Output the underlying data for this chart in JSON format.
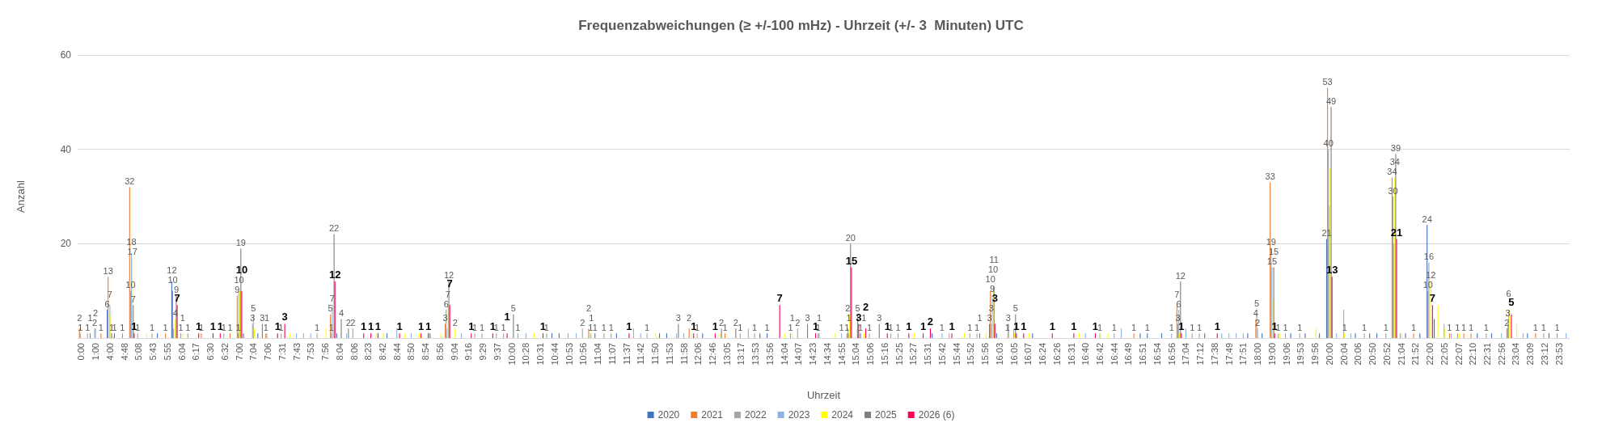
{
  "chart_data": {
    "type": "bar",
    "title": "Frequenzabweichungen (≥ +/-100 mHz) - Uhrzeit (+/- 3  Minuten) UTC",
    "xlabel": "Uhrzeit",
    "ylabel": "Anzahl",
    "categories": [
      "0:00",
      null,
      "1:00",
      null,
      "4:00",
      null,
      "4:48",
      null,
      "5:08",
      null,
      "5:43",
      null,
      "5:55",
      null,
      "6:04",
      null,
      "6:17",
      null,
      "6:30",
      null,
      "6:32",
      null,
      "7:00",
      null,
      "7:04",
      null,
      "7:06",
      null,
      "7:31",
      null,
      "7:43",
      null,
      "7:53",
      null,
      "7:56",
      null,
      "8:04",
      null,
      "8:06",
      null,
      "8:23",
      null,
      "8:42",
      null,
      "8:44",
      null,
      "8:50",
      null,
      "8:54",
      null,
      "8:56",
      null,
      "9:04",
      null,
      "9:16",
      null,
      "9:29",
      null,
      "9:37",
      null,
      "10:00",
      null,
      "10:28",
      null,
      "10:31",
      null,
      "10:44",
      null,
      "10:53",
      null,
      "10:56",
      null,
      "11:04",
      null,
      "11:07",
      null,
      "11:37",
      null,
      "11:42",
      null,
      "11:50",
      null,
      "11:53",
      null,
      "11:58",
      null,
      "12:06",
      null,
      "12:46",
      null,
      "13:05",
      null,
      "13:17",
      null,
      "13:53",
      null,
      "13:56",
      null,
      "14:04",
      null,
      "14:07",
      null,
      "14:23",
      null,
      "14:34",
      null,
      "14:55",
      null,
      "15:04",
      null,
      "15:06",
      null,
      "15:16",
      null,
      "15:25",
      null,
      "15:27",
      null,
      "15:31",
      null,
      "15:42",
      null,
      "15:44",
      null,
      "15:52",
      null,
      "15:56",
      null,
      "16:03",
      null,
      "16:05",
      null,
      "16:07",
      null,
      "16:24",
      null,
      "16:26",
      null,
      "16:31",
      null,
      "16:40",
      null,
      "16:42",
      null,
      "16:44",
      null,
      "16:49",
      null,
      "16:51",
      null,
      "16:54",
      null,
      "16:56",
      null,
      "17:04",
      null,
      "17:12",
      null,
      "17:38",
      null,
      "17:49",
      null,
      "17:51",
      null,
      "18:00",
      null,
      "19:00",
      null,
      "19:06",
      null,
      "19:53",
      null,
      "19:56",
      null,
      "20:00",
      null,
      "20:04",
      null,
      "20:06",
      null,
      "20:50",
      null,
      "20:52",
      null,
      "21:04",
      null,
      "21:52",
      null,
      "22:00",
      null,
      "22:05",
      null,
      "22:07",
      null,
      "22:10",
      null,
      "22:31",
      null,
      "22:56",
      null,
      "23:04",
      null,
      "23:09",
      null,
      "23:12",
      null,
      "23:53",
      null
    ],
    "series": [
      {
        "name": "2020",
        "color": "#4472c4",
        "values": [
          null,
          null,
          null,
          null,
          6,
          1,
          null,
          null,
          null,
          null,
          null,
          1,
          null,
          12,
          null,
          null,
          null,
          null,
          null,
          null,
          null,
          null,
          null,
          1,
          null,
          1,
          null,
          null,
          null,
          null,
          null,
          null,
          null,
          null,
          null,
          null,
          1,
          null,
          null,
          null,
          null,
          null,
          null,
          1,
          null,
          null,
          null,
          null,
          null,
          1,
          null,
          null,
          null,
          null,
          null,
          null,
          null,
          null,
          null,
          null,
          null,
          null,
          null,
          null,
          null,
          null,
          1,
          1,
          null,
          null,
          null,
          null,
          1,
          null,
          null,
          1,
          null,
          null,
          null,
          null,
          null,
          1,
          1,
          null,
          null,
          null,
          null,
          1,
          null,
          null,
          null,
          null,
          null,
          null,
          null,
          1,
          1,
          null,
          null,
          null,
          null,
          null,
          null,
          null,
          null,
          null,
          null,
          null,
          null,
          1,
          null,
          null,
          null,
          null,
          null,
          null,
          null,
          null,
          null,
          1,
          null,
          null,
          null,
          null,
          null,
          null,
          null,
          3,
          1,
          null,
          null,
          null,
          null,
          1,
          null,
          null,
          null,
          null,
          null,
          null,
          null,
          null,
          null,
          null,
          null,
          null,
          null,
          null,
          1,
          1,
          null,
          1,
          null,
          null,
          null,
          null,
          null,
          1,
          null,
          null,
          null,
          null,
          null,
          1,
          null,
          1,
          null,
          null,
          null,
          1,
          null,
          1,
          null,
          1,
          21,
          null,
          null,
          null,
          1,
          null,
          1,
          1,
          null,
          null,
          null,
          1,
          null,
          1,
          24,
          4,
          null,
          null,
          null,
          null,
          null,
          1,
          null,
          1,
          null,
          null,
          null,
          null,
          1,
          null,
          null,
          1,
          null,
          null
        ],
        "value_labels": [
          null,
          null,
          null,
          null,
          "6",
          "1",
          null,
          null,
          null,
          null,
          null,
          null,
          null,
          "12",
          null,
          null,
          null,
          null,
          null,
          null,
          null,
          null,
          null,
          null,
          null,
          null,
          null,
          null,
          null,
          null,
          null,
          null,
          null,
          null,
          null,
          null,
          null,
          null,
          null,
          null,
          null,
          null,
          null,
          null,
          null,
          null,
          null,
          null,
          null,
          null,
          null,
          null,
          null,
          null,
          null,
          null,
          null,
          null,
          null,
          null,
          null,
          null,
          null,
          null,
          null,
          null,
          null,
          null,
          null,
          null,
          null,
          null,
          "1",
          null,
          null,
          null,
          null,
          null,
          null,
          null,
          null,
          null,
          null,
          null,
          null,
          null,
          null,
          null,
          null,
          null,
          null,
          null,
          null,
          null,
          null,
          null,
          "1",
          null,
          null,
          null,
          null,
          null,
          null,
          null,
          null,
          null,
          null,
          null,
          null,
          "1",
          null,
          null,
          null,
          null,
          null,
          null,
          null,
          null,
          null,
          null,
          null,
          null,
          null,
          null,
          null,
          null,
          null,
          "3",
          null,
          null,
          null,
          null,
          null,
          null,
          null,
          null,
          null,
          null,
          null,
          null,
          null,
          null,
          null,
          null,
          null,
          null,
          null,
          null,
          null,
          "1",
          null,
          null,
          null,
          null,
          null,
          null,
          null,
          null,
          null,
          null,
          null,
          null,
          null,
          null,
          null,
          null,
          null,
          null,
          null,
          null,
          null,
          null,
          null,
          null,
          "21",
          null,
          null,
          null,
          null,
          null,
          null,
          null,
          null,
          null,
          null,
          null,
          null,
          null,
          "24",
          null,
          null,
          null,
          null,
          null,
          null,
          null,
          null,
          null,
          null,
          null,
          null,
          null,
          null,
          null,
          null,
          null,
          null,
          null
        ]
      },
      {
        "name": "2021",
        "color": "#ed7d31",
        "values": [
          2,
          null,
          null,
          1,
          13,
          null,
          1,
          32,
          null,
          null,
          null,
          null,
          1,
          10,
          null,
          null,
          null,
          1,
          null,
          null,
          null,
          1,
          9,
          null,
          null,
          null,
          1,
          null,
          null,
          null,
          null,
          null,
          null,
          null,
          null,
          5,
          null,
          null,
          null,
          null,
          null,
          null,
          null,
          null,
          null,
          null,
          null,
          null,
          null,
          null,
          null,
          3,
          null,
          null,
          null,
          null,
          null,
          null,
          null,
          null,
          null,
          null,
          null,
          null,
          null,
          null,
          null,
          null,
          null,
          null,
          null,
          2,
          null,
          null,
          null,
          null,
          null,
          null,
          null,
          null,
          null,
          null,
          null,
          null,
          null,
          2,
          null,
          null,
          null,
          null,
          1,
          null,
          null,
          null,
          null,
          null,
          null,
          null,
          null,
          null,
          null,
          null,
          null,
          1,
          null,
          null,
          null,
          1,
          null,
          null,
          null,
          null,
          null,
          null,
          null,
          null,
          null,
          null,
          null,
          null,
          null,
          null,
          null,
          null,
          null,
          null,
          null,
          10,
          null,
          null,
          null,
          null,
          null,
          null,
          null,
          null,
          null,
          null,
          null,
          null,
          null,
          null,
          null,
          null,
          null,
          null,
          null,
          1,
          null,
          null,
          null,
          null,
          null,
          7,
          null,
          null,
          null,
          null,
          null,
          null,
          null,
          null,
          null,
          null,
          4,
          null,
          33,
          null,
          null,
          null,
          null,
          null,
          null,
          null,
          53,
          null,
          null,
          null,
          null,
          null,
          null,
          null,
          null,
          34,
          null,
          null,
          1,
          null,
          10,
          null,
          null,
          1,
          null,
          1,
          1,
          null,
          null,
          null,
          null,
          2,
          null,
          null,
          null,
          1,
          null,
          null,
          1,
          null
        ]
      },
      {
        "name": "2022",
        "color": "#a5a5a5",
        "values": [
          1,
          1,
          2,
          null,
          null,
          null,
          null,
          10,
          1,
          null,
          1,
          null,
          null,
          2,
          1,
          1,
          null,
          null,
          null,
          null,
          1,
          null,
          1,
          null,
          3,
          null,
          1,
          null,
          1,
          null,
          null,
          null,
          null,
          1,
          null,
          1,
          null,
          null,
          2,
          null,
          null,
          null,
          null,
          null,
          null,
          null,
          null,
          null,
          null,
          null,
          null,
          6,
          null,
          null,
          null,
          1,
          1,
          null,
          1,
          1,
          null,
          1,
          null,
          null,
          null,
          1,
          null,
          null,
          1,
          null,
          2,
          null,
          null,
          1,
          1,
          null,
          null,
          null,
          null,
          1,
          null,
          null,
          null,
          null,
          null,
          null,
          1,
          null,
          null,
          null,
          null,
          null,
          1,
          null,
          1,
          null,
          null,
          null,
          null,
          1,
          2,
          null,
          null,
          1,
          null,
          null,
          null,
          2,
          null,
          null,
          1,
          null,
          null,
          1,
          1,
          null,
          null,
          null,
          null,
          null,
          null,
          null,
          null,
          null,
          1,
          1,
          null,
          3,
          null,
          null,
          null,
          null,
          null,
          null,
          null,
          null,
          null,
          null,
          null,
          null,
          null,
          null,
          null,
          null,
          null,
          null,
          null,
          null,
          null,
          null,
          null,
          null,
          null,
          3,
          null,
          1,
          1,
          null,
          null,
          null,
          null,
          null,
          null,
          null,
          5,
          null,
          19,
          1,
          1,
          null,
          1,
          null,
          null,
          null,
          40,
          null,
          null,
          null,
          null,
          1,
          null,
          null,
          1,
          30,
          1,
          null,
          null,
          null,
          16,
          null,
          null,
          null,
          1,
          null,
          null,
          null,
          1,
          null,
          null,
          3,
          null,
          null,
          null,
          null,
          1,
          null,
          null,
          null
        ],
        "value_labels": [
          "1",
          "1",
          "2",
          null,
          null,
          null,
          null,
          "10",
          "1",
          null,
          "1",
          null,
          null,
          null,
          "1",
          "1",
          null,
          null,
          null,
          null,
          "1",
          null,
          "1",
          null,
          "3",
          null,
          "1",
          null,
          "1",
          null,
          null,
          null,
          null,
          "1",
          null,
          "1",
          null,
          null,
          "2",
          null,
          null,
          null,
          null,
          null,
          null,
          null,
          null,
          null,
          null,
          null,
          null,
          "6",
          null,
          null,
          null,
          "1",
          "1",
          null,
          "1",
          "1",
          null,
          "1",
          null,
          null,
          null,
          "1",
          null,
          null,
          null,
          null,
          "2",
          null,
          null,
          "1",
          "1",
          null,
          null,
          null,
          null,
          "1",
          null,
          null,
          null,
          null,
          null,
          null,
          "1",
          null,
          null,
          null,
          null,
          null,
          "1",
          null,
          "1",
          null,
          null,
          null,
          null,
          "1",
          "2",
          null,
          null,
          "1",
          null,
          null,
          null,
          "2",
          null,
          null,
          "1",
          null,
          null,
          "1",
          "1",
          null,
          null,
          null,
          null,
          null,
          null,
          null,
          null,
          null,
          "1",
          "1",
          null,
          "3",
          null,
          null,
          null,
          null,
          null,
          null,
          null,
          null,
          null,
          null,
          null,
          null,
          null,
          null,
          null,
          null,
          null,
          null,
          null,
          null,
          null,
          null,
          null,
          null,
          null,
          "3",
          null,
          "1",
          "1",
          null,
          null,
          null,
          null,
          null,
          null,
          null,
          "5",
          null,
          "19",
          "1",
          "1",
          null,
          "1",
          null,
          null,
          null,
          "40",
          null,
          null,
          null,
          null,
          "1",
          null,
          null,
          "1",
          "30",
          null,
          null,
          null,
          null,
          "16",
          null,
          null,
          null,
          "1",
          null,
          null,
          null,
          "1",
          null,
          null,
          "3",
          null,
          null,
          null,
          null,
          "1",
          null,
          null,
          null
        ]
      },
      {
        "name": "2023",
        "color": "#8fb4e3",
        "values": [
          null,
          null,
          2,
          null,
          7,
          null,
          null,
          18,
          null,
          null,
          null,
          null,
          null,
          null,
          null,
          null,
          null,
          null,
          null,
          null,
          null,
          null,
          10,
          null,
          5,
          null,
          null,
          null,
          null,
          null,
          1,
          1,
          1,
          null,
          null,
          7,
          null,
          1,
          null,
          null,
          null,
          null,
          null,
          null,
          2,
          null,
          1,
          null,
          null,
          null,
          null,
          2,
          null,
          1,
          null,
          null,
          null,
          null,
          null,
          null,
          null,
          null,
          1,
          null,
          null,
          null,
          null,
          null,
          null,
          1,
          null,
          1,
          null,
          null,
          null,
          null,
          null,
          2,
          1,
          null,
          null,
          null,
          null,
          1,
          1,
          null,
          null,
          null,
          null,
          null,
          null,
          null,
          null,
          2,
          null,
          null,
          null,
          null,
          null,
          null,
          null,
          null,
          null,
          null,
          null,
          null,
          1,
          1,
          null,
          null,
          null,
          null,
          null,
          null,
          null,
          null,
          null,
          null,
          null,
          null,
          1,
          1,
          null,
          null,
          null,
          null,
          null,
          9,
          null,
          null,
          2,
          null,
          null,
          null,
          null,
          null,
          null,
          null,
          null,
          null,
          1,
          null,
          1,
          null,
          1,
          2,
          null,
          null,
          null,
          null,
          null,
          null,
          1,
          6,
          2,
          null,
          null,
          null,
          null,
          1,
          1,
          1,
          1,
          null,
          2,
          null,
          15,
          null,
          null,
          null,
          null,
          null,
          null,
          null,
          28,
          1,
          6,
          1,
          null,
          null,
          null,
          null,
          null,
          20,
          null,
          null,
          null,
          null,
          null,
          null,
          3,
          1,
          null,
          null,
          null,
          null,
          null,
          null,
          1,
          6,
          null,
          1,
          null,
          null,
          null,
          null,
          null,
          1
        ],
        "value_labels": [
          null,
          null,
          "2",
          null,
          "7",
          null,
          null,
          "18",
          null,
          null,
          null,
          null,
          null,
          null,
          null,
          null,
          null,
          null,
          null,
          null,
          null,
          null,
          "10",
          null,
          "5",
          null,
          null,
          null,
          null,
          null,
          null,
          null,
          null,
          null,
          null,
          "7",
          null,
          null,
          null,
          null,
          null,
          null,
          null,
          null,
          null,
          null,
          null,
          null,
          null,
          null,
          null,
          null,
          null,
          null,
          null,
          null,
          null,
          null,
          null,
          null,
          null,
          null,
          null,
          null,
          null,
          null,
          null,
          null,
          null,
          null,
          null,
          "1",
          null,
          null,
          null,
          null,
          null,
          null,
          null,
          null,
          null,
          null,
          null,
          null,
          null,
          null,
          null,
          null,
          null,
          null,
          null,
          null,
          null,
          null,
          null,
          null,
          null,
          null,
          null,
          null,
          null,
          null,
          null,
          null,
          null,
          null,
          "1",
          "1",
          null,
          null,
          null,
          null,
          null,
          null,
          null,
          null,
          null,
          null,
          null,
          null,
          "1",
          null,
          null,
          null,
          null,
          null,
          null,
          "9",
          null,
          null,
          null,
          null,
          null,
          null,
          null,
          null,
          null,
          null,
          null,
          null,
          null,
          null,
          "1",
          null,
          "1",
          null,
          null,
          null,
          null,
          null,
          null,
          null,
          "1",
          "6",
          null,
          null,
          null,
          null,
          null,
          null,
          null,
          null,
          null,
          null,
          "2",
          null,
          "15",
          null,
          null,
          null,
          null,
          null,
          null,
          null,
          null,
          null,
          null,
          null,
          null,
          null,
          null,
          null,
          null,
          null,
          null,
          null,
          null,
          null,
          null,
          null,
          null,
          null,
          null,
          null,
          null,
          null,
          null,
          null,
          null,
          "6",
          null,
          null,
          null,
          null,
          null,
          null,
          null,
          null
        ]
      },
      {
        "name": "2024",
        "color": "#ffff00",
        "values": [
          null,
          null,
          null,
          null,
          5,
          null,
          null,
          17,
          null,
          1,
          null,
          null,
          null,
          4,
          1,
          null,
          null,
          null,
          null,
          null,
          null,
          null,
          10,
          null,
          2,
          null,
          null,
          null,
          null,
          1,
          null,
          null,
          null,
          null,
          2,
          null,
          null,
          null,
          null,
          null,
          null,
          1,
          1,
          null,
          null,
          1,
          null,
          1,
          null,
          null,
          1,
          7,
          2,
          null,
          null,
          null,
          null,
          null,
          null,
          null,
          null,
          null,
          null,
          1,
          null,
          null,
          null,
          null,
          null,
          null,
          null,
          1,
          null,
          null,
          null,
          null,
          null,
          null,
          null,
          null,
          1,
          null,
          null,
          null,
          null,
          1,
          null,
          null,
          null,
          1,
          null,
          null,
          null,
          null,
          null,
          null,
          null,
          null,
          1,
          1,
          null,
          null,
          null,
          null,
          null,
          1,
          null,
          5,
          2,
          1,
          null,
          null,
          null,
          null,
          null,
          null,
          1,
          null,
          null,
          null,
          null,
          null,
          null,
          1,
          null,
          null,
          1,
          10,
          null,
          1,
          1,
          null,
          1,
          null,
          null,
          null,
          null,
          null,
          null,
          1,
          null,
          null,
          1,
          1,
          null,
          null,
          null,
          null,
          null,
          null,
          null,
          null,
          null,
          1,
          null,
          null,
          null,
          null,
          null,
          null,
          null,
          null,
          null,
          null,
          null,
          null,
          8,
          1,
          null,
          null,
          null,
          null,
          2,
          null,
          36,
          null,
          1,
          null,
          null,
          null,
          null,
          null,
          null,
          34,
          1,
          null,
          null,
          null,
          12,
          7,
          2,
          null,
          1,
          null,
          null,
          null,
          null,
          null,
          null,
          6,
          3,
          null,
          null,
          null,
          null,
          null,
          null,
          null
        ],
        "value_labels": [
          null,
          null,
          null,
          null,
          null,
          null,
          null,
          "17",
          null,
          null,
          null,
          null,
          null,
          "4",
          "1",
          null,
          null,
          null,
          null,
          null,
          null,
          null,
          null,
          null,
          null,
          null,
          null,
          null,
          null,
          null,
          null,
          null,
          null,
          null,
          null,
          null,
          null,
          null,
          null,
          null,
          null,
          null,
          null,
          null,
          null,
          null,
          null,
          null,
          null,
          null,
          null,
          "7",
          "2",
          null,
          null,
          null,
          null,
          null,
          null,
          null,
          null,
          null,
          null,
          null,
          null,
          null,
          null,
          null,
          null,
          null,
          null,
          "1",
          null,
          null,
          null,
          null,
          null,
          null,
          null,
          null,
          null,
          null,
          null,
          null,
          null,
          null,
          null,
          null,
          null,
          null,
          null,
          null,
          null,
          null,
          null,
          null,
          null,
          null,
          null,
          "1",
          null,
          null,
          null,
          null,
          null,
          null,
          null,
          null,
          null,
          "1",
          null,
          null,
          null,
          null,
          null,
          null,
          null,
          null,
          null,
          null,
          null,
          null,
          null,
          null,
          null,
          null,
          null,
          "10",
          null,
          "1",
          null,
          null,
          null,
          null,
          null,
          null,
          null,
          null,
          null,
          null,
          null,
          null,
          null,
          null,
          null,
          null,
          null,
          null,
          null,
          null,
          null,
          null,
          null,
          null,
          null,
          null,
          null,
          null,
          null,
          null,
          null,
          null,
          null,
          null,
          null,
          null,
          null,
          null,
          null,
          null,
          null,
          null,
          null,
          null,
          null,
          null,
          "1",
          null,
          null,
          null,
          null,
          null,
          null,
          "34",
          null,
          null,
          null,
          null,
          "12",
          null,
          null,
          null,
          null,
          null,
          null,
          null,
          null,
          null,
          null,
          null,
          null,
          null,
          null,
          null,
          null,
          null,
          null,
          null
        ]
      },
      {
        "name": "2025",
        "color": "#7f7f7f",
        "values": [
          null,
          1,
          null,
          null,
          1,
          null,
          null,
          7,
          null,
          null,
          null,
          null,
          null,
          9,
          null,
          null,
          null,
          null,
          null,
          null,
          null,
          null,
          19,
          null,
          null,
          3,
          null,
          null,
          null,
          null,
          null,
          null,
          null,
          null,
          null,
          22,
          4,
          2,
          null,
          null,
          null,
          null,
          null,
          null,
          null,
          null,
          null,
          null,
          null,
          null,
          null,
          12,
          null,
          null,
          null,
          null,
          null,
          null,
          null,
          null,
          5,
          null,
          null,
          null,
          null,
          null,
          null,
          null,
          null,
          null,
          null,
          null,
          null,
          null,
          null,
          null,
          null,
          null,
          null,
          null,
          null,
          null,
          null,
          3,
          null,
          null,
          null,
          null,
          null,
          2,
          null,
          2,
          null,
          null,
          null,
          null,
          null,
          null,
          null,
          null,
          null,
          3,
          null,
          null,
          null,
          null,
          null,
          20,
          5,
          null,
          null,
          3,
          null,
          null,
          null,
          null,
          null,
          null,
          null,
          null,
          null,
          null,
          null,
          null,
          null,
          1,
          null,
          11,
          null,
          3,
          5,
          null,
          null,
          null,
          null,
          null,
          null,
          null,
          null,
          null,
          null,
          null,
          null,
          null,
          null,
          null,
          null,
          null,
          null,
          null,
          null,
          null,
          null,
          12,
          null,
          null,
          null,
          null,
          null,
          null,
          null,
          null,
          null,
          null,
          null,
          null,
          15,
          null,
          null,
          null,
          null,
          null,
          null,
          null,
          49,
          null,
          null,
          null,
          null,
          null,
          null,
          null,
          null,
          39,
          null,
          null,
          null,
          null,
          null,
          null,
          null,
          null,
          null,
          null,
          null,
          null,
          null,
          null,
          null,
          null,
          null,
          null,
          null,
          null,
          null,
          null,
          null,
          null
        ]
      },
      {
        "name": "2026 (6)",
        "color": "#ff0050",
        "values": [
          null,
          null,
          null,
          null,
          null,
          null,
          null,
          1,
          null,
          null,
          null,
          null,
          null,
          7,
          null,
          null,
          1,
          null,
          1,
          1,
          null,
          null,
          10,
          null,
          null,
          null,
          null,
          1,
          3,
          null,
          null,
          null,
          null,
          null,
          null,
          12,
          null,
          null,
          null,
          1,
          1,
          1,
          null,
          null,
          1,
          null,
          null,
          1,
          1,
          null,
          null,
          7,
          null,
          null,
          1,
          null,
          null,
          1,
          null,
          1,
          null,
          null,
          null,
          null,
          1,
          null,
          null,
          null,
          null,
          null,
          null,
          null,
          null,
          null,
          null,
          null,
          1,
          null,
          null,
          null,
          null,
          null,
          null,
          null,
          null,
          1,
          null,
          null,
          1,
          null,
          null,
          null,
          null,
          null,
          null,
          null,
          null,
          7,
          null,
          null,
          null,
          null,
          1,
          null,
          null,
          null,
          null,
          15,
          3,
          2,
          null,
          null,
          1,
          null,
          null,
          1,
          null,
          1,
          2,
          null,
          null,
          1,
          null,
          null,
          null,
          null,
          null,
          3,
          null,
          null,
          1,
          1,
          null,
          null,
          null,
          1,
          null,
          null,
          1,
          null,
          null,
          1,
          null,
          null,
          null,
          null,
          null,
          null,
          null,
          null,
          null,
          null,
          null,
          1,
          null,
          null,
          null,
          null,
          1,
          null,
          null,
          null,
          null,
          null,
          null,
          null,
          1,
          null,
          null,
          null,
          null,
          null,
          null,
          null,
          13,
          null,
          null,
          null,
          null,
          null,
          null,
          null,
          null,
          21,
          null,
          null,
          null,
          null,
          7,
          null,
          null,
          null,
          null,
          null,
          null,
          null,
          null,
          null,
          null,
          5,
          null,
          null,
          null,
          null,
          null,
          null,
          null,
          null
        ]
      }
    ],
    "ylim": [
      0,
      60
    ],
    "yticks": [
      {
        "value": 0,
        "label": null
      },
      20,
      40,
      60
    ],
    "grid": "y",
    "legend": "bottom",
    "data_labels": true
  }
}
